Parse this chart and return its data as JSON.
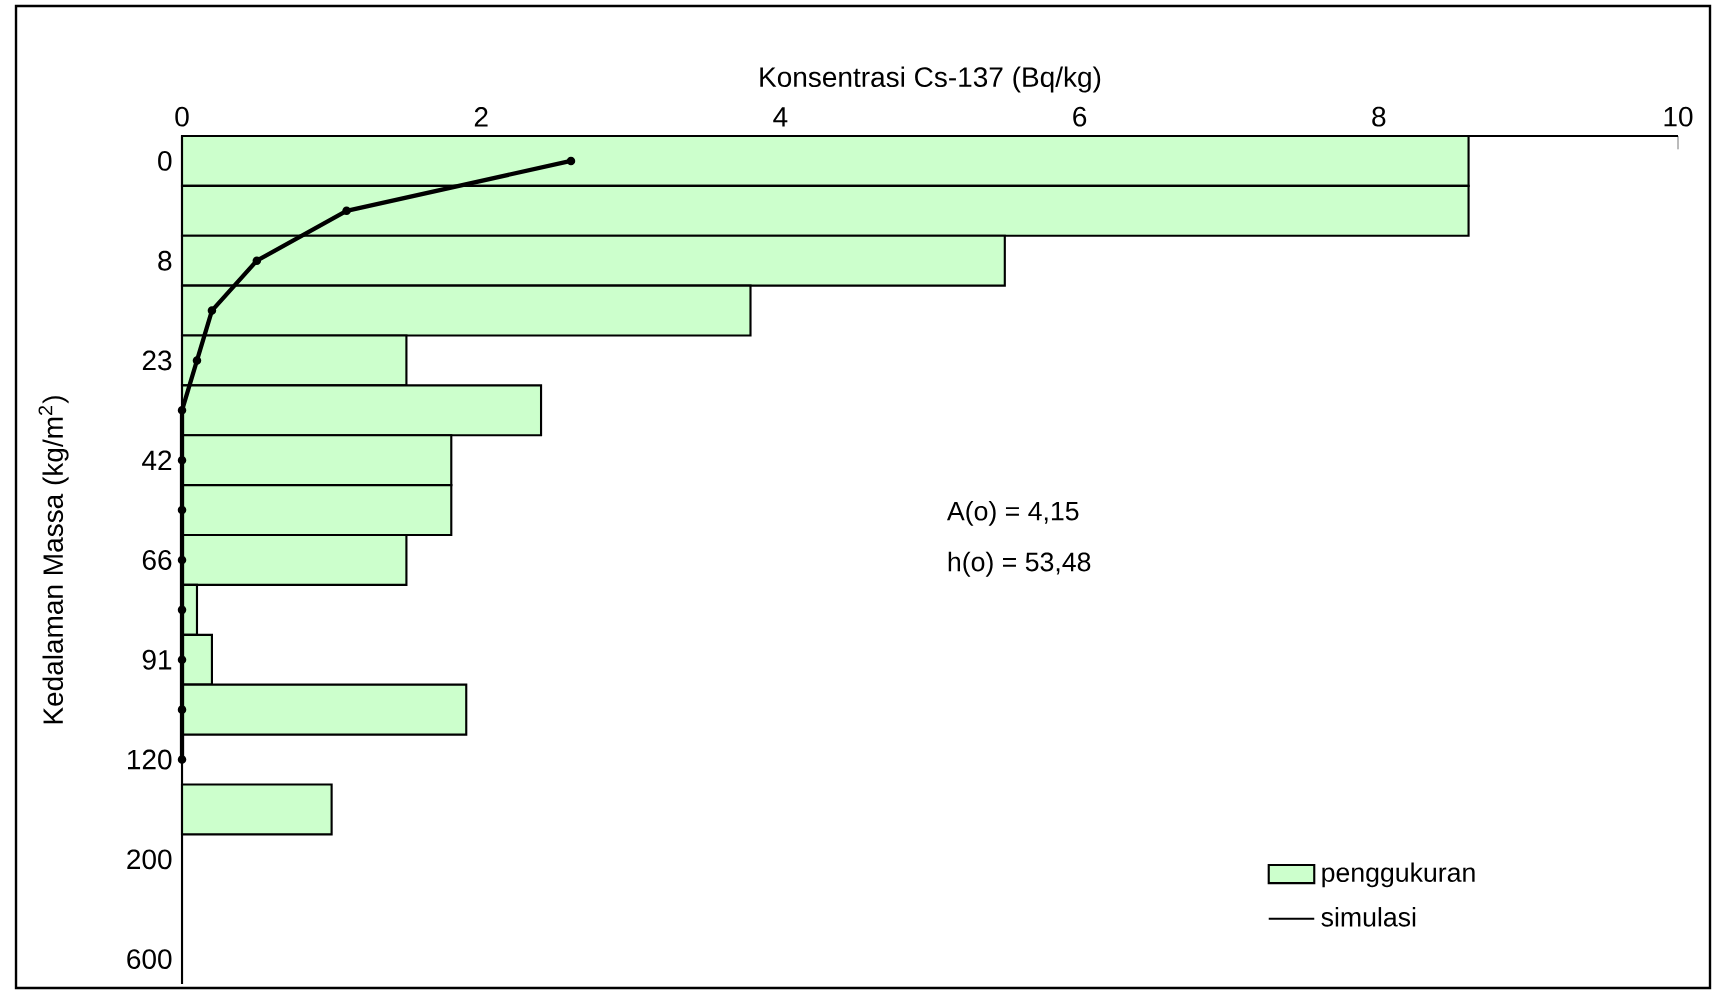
{
  "chart_data": {
    "type": "bar",
    "orientation": "horizontal",
    "xlabel": "Konsentrasi  Cs-137    (Bq/kg)",
    "ylabel": "Kedalaman  Massa (kg/m$^{2}$)",
    "categories": [
      "0",
      null,
      "8",
      null,
      "23",
      null,
      "42",
      null,
      "66",
      null,
      "91",
      null,
      "120",
      null,
      "200",
      null,
      "600"
    ],
    "series": [
      {
        "name": "penggukuran",
        "color": "#ccffcc",
        "values": [
          8.6,
          8.6,
          5.5,
          3.8,
          1.5,
          2.4,
          1.8,
          1.8,
          1.5,
          0.1,
          0.2,
          1.9,
          null,
          1.0,
          null,
          null,
          null
        ]
      },
      {
        "name": "simulasi",
        "type": "line",
        "color": "#000000",
        "marker": "circle",
        "values": [
          2.6,
          1.1,
          0.5,
          0.2,
          0.1,
          0,
          0,
          0,
          0,
          0,
          0,
          0,
          0,
          null,
          null,
          null,
          null
        ]
      }
    ],
    "xlim": [
      0,
      10
    ],
    "xticks": [
      0,
      2,
      4,
      6,
      8,
      10
    ],
    "annotations": [
      "A(o)  =  4,15",
      "h(o)  = 53,48"
    ],
    "legend": "bottom right",
    "grid": false
  }
}
